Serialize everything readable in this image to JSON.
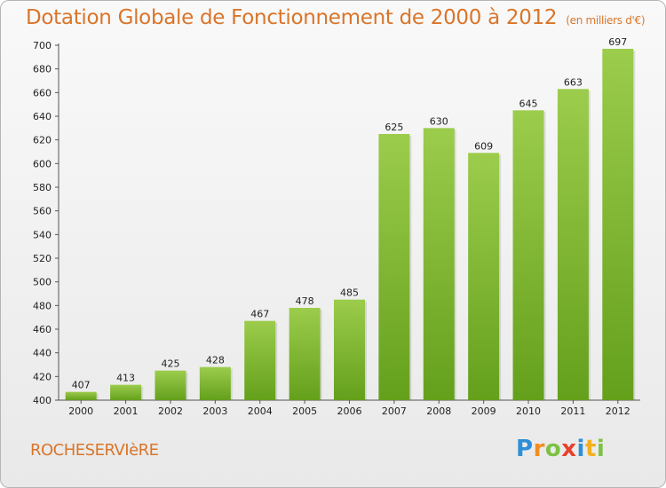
{
  "title": "Dotation Globale de Fonctionnement de 2000 à 2012",
  "subtitle": "(en milliers d'€)",
  "commune": "ROCHESERVIèRE",
  "logo": {
    "letters": [
      "P",
      "r",
      "o",
      "x",
      "i",
      "t",
      "i"
    ],
    "colors": [
      "#2e8fd8",
      "#f28c1e",
      "#7cc243",
      "#e8412c",
      "#2e8fd8",
      "#f2b01e",
      "#7cc243"
    ]
  },
  "chart_data": {
    "type": "bar",
    "categories": [
      "2000",
      "2001",
      "2002",
      "2003",
      "2004",
      "2005",
      "2006",
      "2007",
      "2008",
      "2009",
      "2010",
      "2011",
      "2012"
    ],
    "values": [
      407,
      413,
      425,
      428,
      467,
      478,
      485,
      625,
      630,
      609,
      645,
      663,
      697
    ],
    "ylim": [
      400,
      700
    ],
    "yticks": [
      400,
      420,
      440,
      460,
      480,
      500,
      520,
      540,
      560,
      580,
      600,
      620,
      640,
      660,
      680,
      700
    ],
    "grid": false,
    "bar_color_top": "#9ccc4c",
    "bar_color_bottom": "#64a01c"
  }
}
